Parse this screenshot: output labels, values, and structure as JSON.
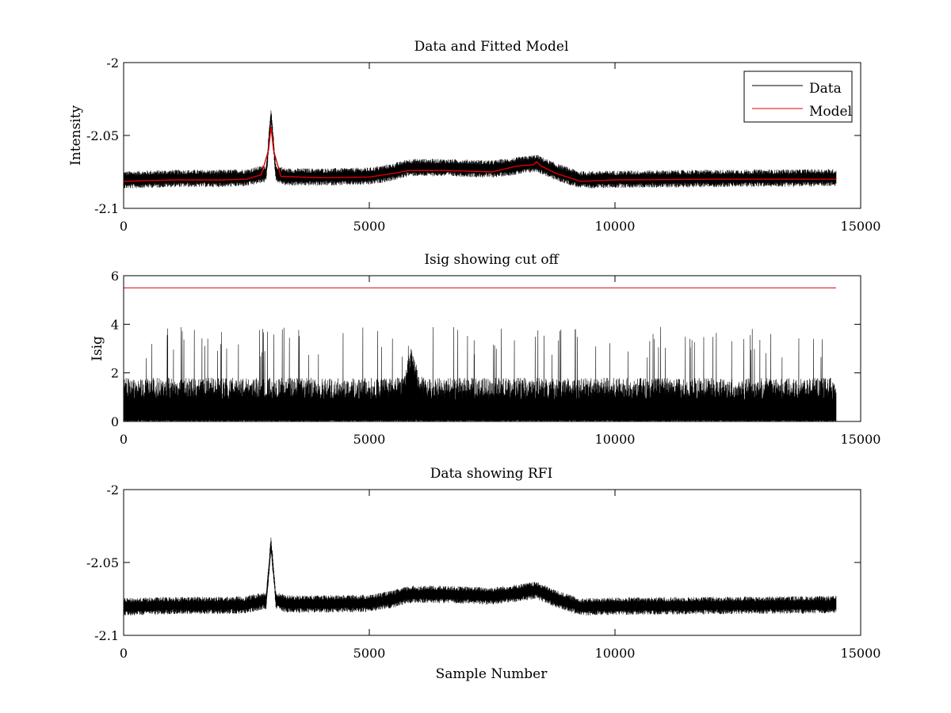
{
  "figure": {
    "xlabel": "Sample Number"
  },
  "colors": {
    "data": "#000000",
    "model": "#e00000",
    "cutoff": "#e00000",
    "axes": "#000000",
    "background": "#ffffff"
  },
  "chart_data": [
    {
      "type": "line",
      "title": "Data and Fitted Model",
      "xlabel": "",
      "ylabel": "Intensity",
      "xlim": [
        0,
        15000
      ],
      "ylim": [
        -2.1,
        -2.0
      ],
      "xticks": [
        "0",
        "5000",
        "10000",
        "15000"
      ],
      "yticks": [
        "-2.1",
        "-2.05",
        "-2"
      ],
      "legend": {
        "placement": "top-right",
        "entries": [
          "Data",
          "Model"
        ]
      },
      "grid": false,
      "series": [
        {
          "name": "Data",
          "role": "noisy",
          "n_samples": 14500,
          "baseline": {
            "x": [
              0,
              1000,
              2000,
              2500,
              2900,
              3000,
              3100,
              3300,
              4000,
              5000,
              5500,
              5800,
              6500,
              7500,
              8000,
              8400,
              8800,
              9300,
              10000,
              12000,
              14500
            ],
            "y": [
              -2.0805,
              -2.0795,
              -2.0795,
              -2.079,
              -2.076,
              -2.037,
              -2.076,
              -2.0785,
              -2.0785,
              -2.078,
              -2.075,
              -2.072,
              -2.072,
              -2.073,
              -2.071,
              -2.069,
              -2.075,
              -2.0805,
              -2.08,
              -2.0795,
              -2.079
            ]
          },
          "noise_halfwidth": 0.006
        },
        {
          "name": "Model",
          "role": "smooth",
          "x": [
            0,
            1000,
            2000,
            2500,
            2800,
            2950,
            3000,
            3050,
            3200,
            4000,
            5000,
            5500,
            5800,
            6500,
            7500,
            8000,
            8350,
            8400,
            8500,
            8800,
            9300,
            10000,
            12000,
            14500
          ],
          "y": [
            -2.0815,
            -2.0805,
            -2.0805,
            -2.08,
            -2.077,
            -2.06,
            -2.044,
            -2.06,
            -2.078,
            -2.079,
            -2.0785,
            -2.076,
            -2.074,
            -2.074,
            -2.075,
            -2.071,
            -2.07,
            -2.068,
            -2.071,
            -2.076,
            -2.0815,
            -2.0805,
            -2.08,
            -2.08
          ]
        }
      ]
    },
    {
      "type": "line",
      "title": "Isig showing cut off",
      "xlabel": "",
      "ylabel": "Isig",
      "xlim": [
        0,
        15000
      ],
      "ylim": [
        0,
        6
      ],
      "xticks": [
        "0",
        "5000",
        "10000",
        "15000"
      ],
      "yticks": [
        "0",
        "2",
        "4",
        "6"
      ],
      "grid": false,
      "series": [
        {
          "name": "Isig",
          "role": "spiky",
          "n_samples": 14500,
          "typical_max": 2.0,
          "max": 4.0,
          "local_peak_x": 5850,
          "local_peak_y": 4.0
        },
        {
          "name": "Cut off",
          "role": "hline",
          "x": [
            0,
            14500
          ],
          "y": [
            5.5,
            5.5
          ]
        }
      ]
    },
    {
      "type": "line",
      "title": "Data showing RFI",
      "xlabel": "Sample Number",
      "ylabel": "",
      "xlim": [
        0,
        15000
      ],
      "ylim": [
        -2.1,
        -2.0
      ],
      "xticks": [
        "0",
        "5000",
        "10000",
        "15000"
      ],
      "yticks": [
        "-2.1",
        "-2.05",
        "-2"
      ],
      "grid": false,
      "series": [
        {
          "name": "Data",
          "role": "noisy",
          "n_samples": 14500,
          "baseline": {
            "x": [
              0,
              1000,
              2000,
              2500,
              2900,
              3000,
              3100,
              3300,
              4000,
              5000,
              5500,
              5800,
              6500,
              7500,
              8000,
              8400,
              8800,
              9300,
              10000,
              12000,
              14500
            ],
            "y": [
              -2.0805,
              -2.0795,
              -2.0795,
              -2.079,
              -2.076,
              -2.037,
              -2.076,
              -2.0785,
              -2.0785,
              -2.078,
              -2.075,
              -2.072,
              -2.072,
              -2.073,
              -2.071,
              -2.069,
              -2.075,
              -2.0805,
              -2.08,
              -2.0795,
              -2.079
            ]
          },
          "noise_halfwidth": 0.006
        }
      ]
    }
  ]
}
